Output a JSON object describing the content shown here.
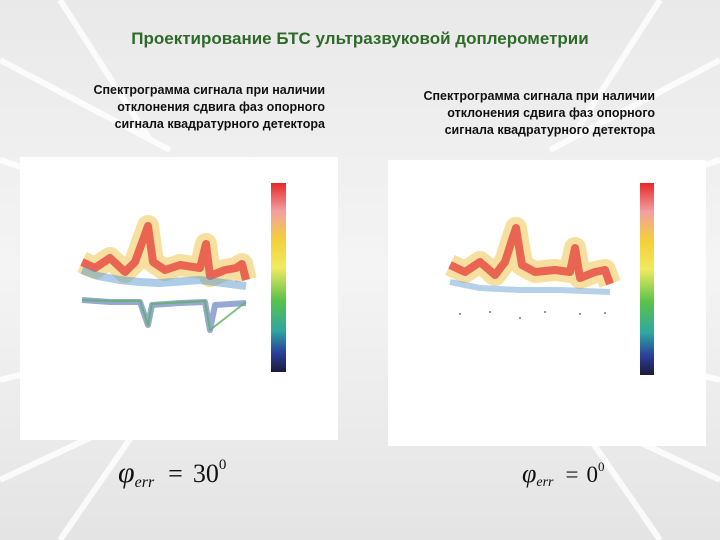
{
  "header": {
    "title": "Проектирование БТС ультразвуковой доплерометрии"
  },
  "panels": [
    {
      "caption": [
        "Спектрограмма сигнала при наличии",
        "отклонения сдвига фаз опорного",
        "сигнала квадратурного детектора"
      ],
      "formula": {
        "symbol": "φ",
        "subscript": "err",
        "operator": "=",
        "value": "30",
        "superscript": "0"
      }
    },
    {
      "caption": [
        "Спектрограмма сигнала при наличии",
        "отклонения сдвига фаз опорного",
        "сигнала квадратурного детектора"
      ],
      "formula": {
        "symbol": "φ",
        "subscript": "err",
        "operator": "=",
        "value": "0",
        "superscript": "0"
      }
    }
  ]
}
